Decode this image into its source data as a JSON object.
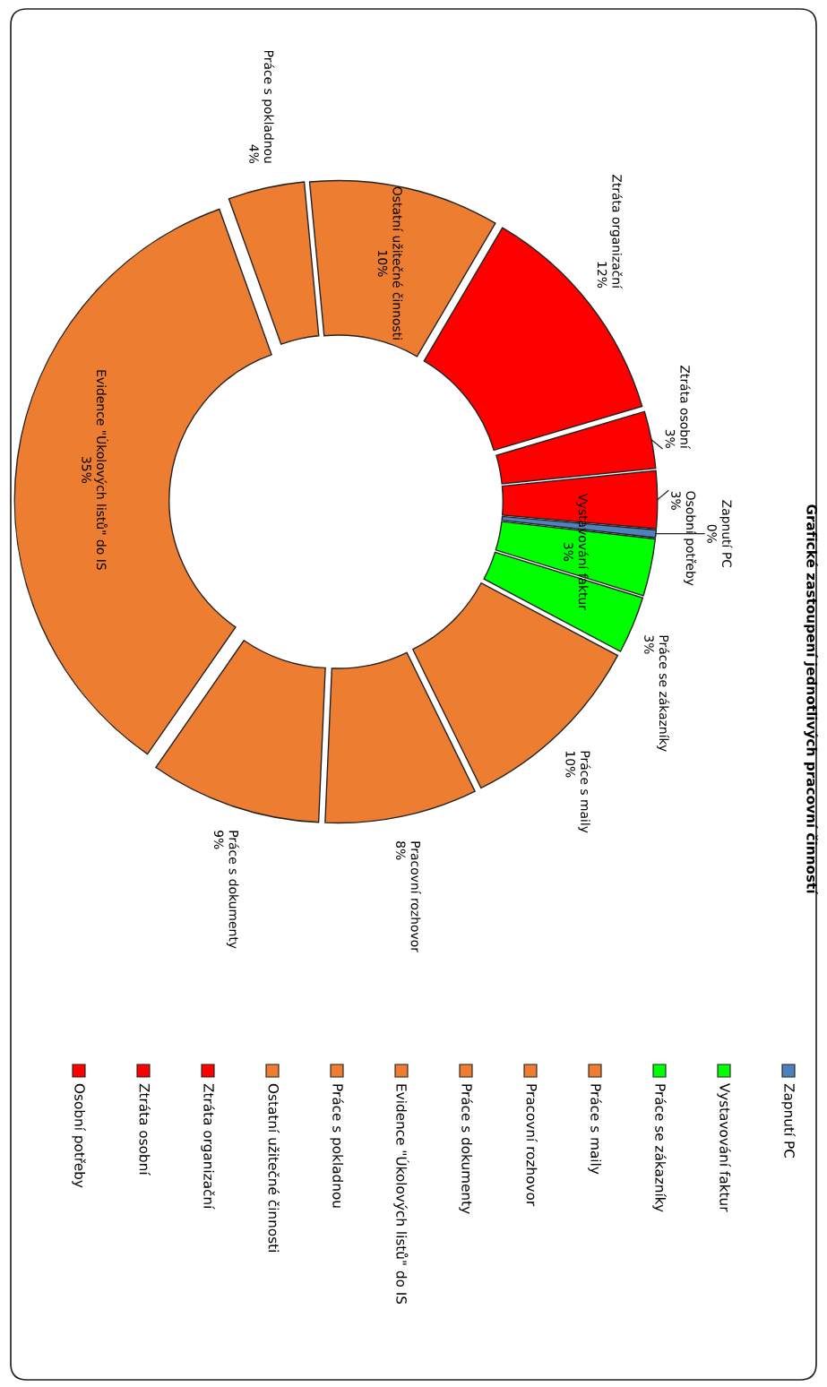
{
  "chart_data": {
    "type": "donut",
    "title": "Grafické zastoupení jednotlivých pracovní činností",
    "categories": [
      "Zapnutí PC",
      "Vystavování faktur",
      "Práce se zákazníky",
      "Práce s maily",
      "Pracovní rozhovor",
      "Práce s dokumenty",
      "Evidence \"Úkolových listů\" do IS",
      "Práce s pokladnou",
      "Ostatní užitečné činnosti",
      "Ztráta organizační",
      "Ztráta osobní",
      "Osobní potřeby"
    ],
    "values": [
      0.4,
      3,
      3,
      10,
      8,
      9,
      35,
      4,
      10,
      12,
      3,
      3
    ],
    "colors": [
      "#4f81bd",
      "#00ff00",
      "#00ff00",
      "#ed7d31",
      "#ed7d31",
      "#ed7d31",
      "#ed7d31",
      "#ed7d31",
      "#ed7d31",
      "#ff0000",
      "#ff0000",
      "#ff0000"
    ],
    "value_labels": [
      "0%",
      "3%",
      "3%",
      "10%",
      "8%",
      "9%",
      "35%",
      "4%",
      "10%",
      "12%",
      "3%",
      "3%"
    ],
    "legend": "right"
  }
}
